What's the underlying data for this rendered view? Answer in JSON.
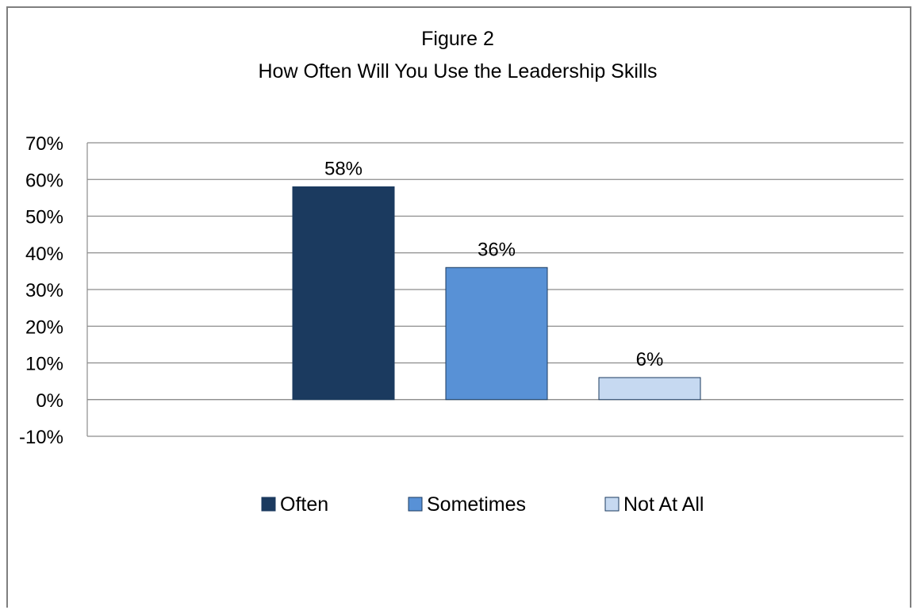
{
  "chart_data": {
    "type": "bar",
    "title": "Figure 2",
    "subtitle": "How Often Will You Use the Leadership Skills",
    "xlabel": "",
    "ylabel": "",
    "ylim": [
      -10,
      70
    ],
    "y_ticks": [
      "70%",
      "60%",
      "50%",
      "40%",
      "30%",
      "20%",
      "10%",
      "0%",
      "-10%"
    ],
    "y_tick_values": [
      70,
      60,
      50,
      40,
      30,
      20,
      10,
      0,
      -10
    ],
    "grid": true,
    "legend_position": "bottom",
    "series": [
      {
        "name": "Often",
        "value": 58,
        "label": "58%",
        "color": "#1b3a5f"
      },
      {
        "name": "Sometimes",
        "value": 36,
        "label": "36%",
        "color": "#5891d6"
      },
      {
        "name": "Not At All",
        "value": 6,
        "label": "6%",
        "color": "#c6d9f1"
      }
    ],
    "legend": [
      "Often",
      "Sometimes",
      "Not At All"
    ]
  }
}
